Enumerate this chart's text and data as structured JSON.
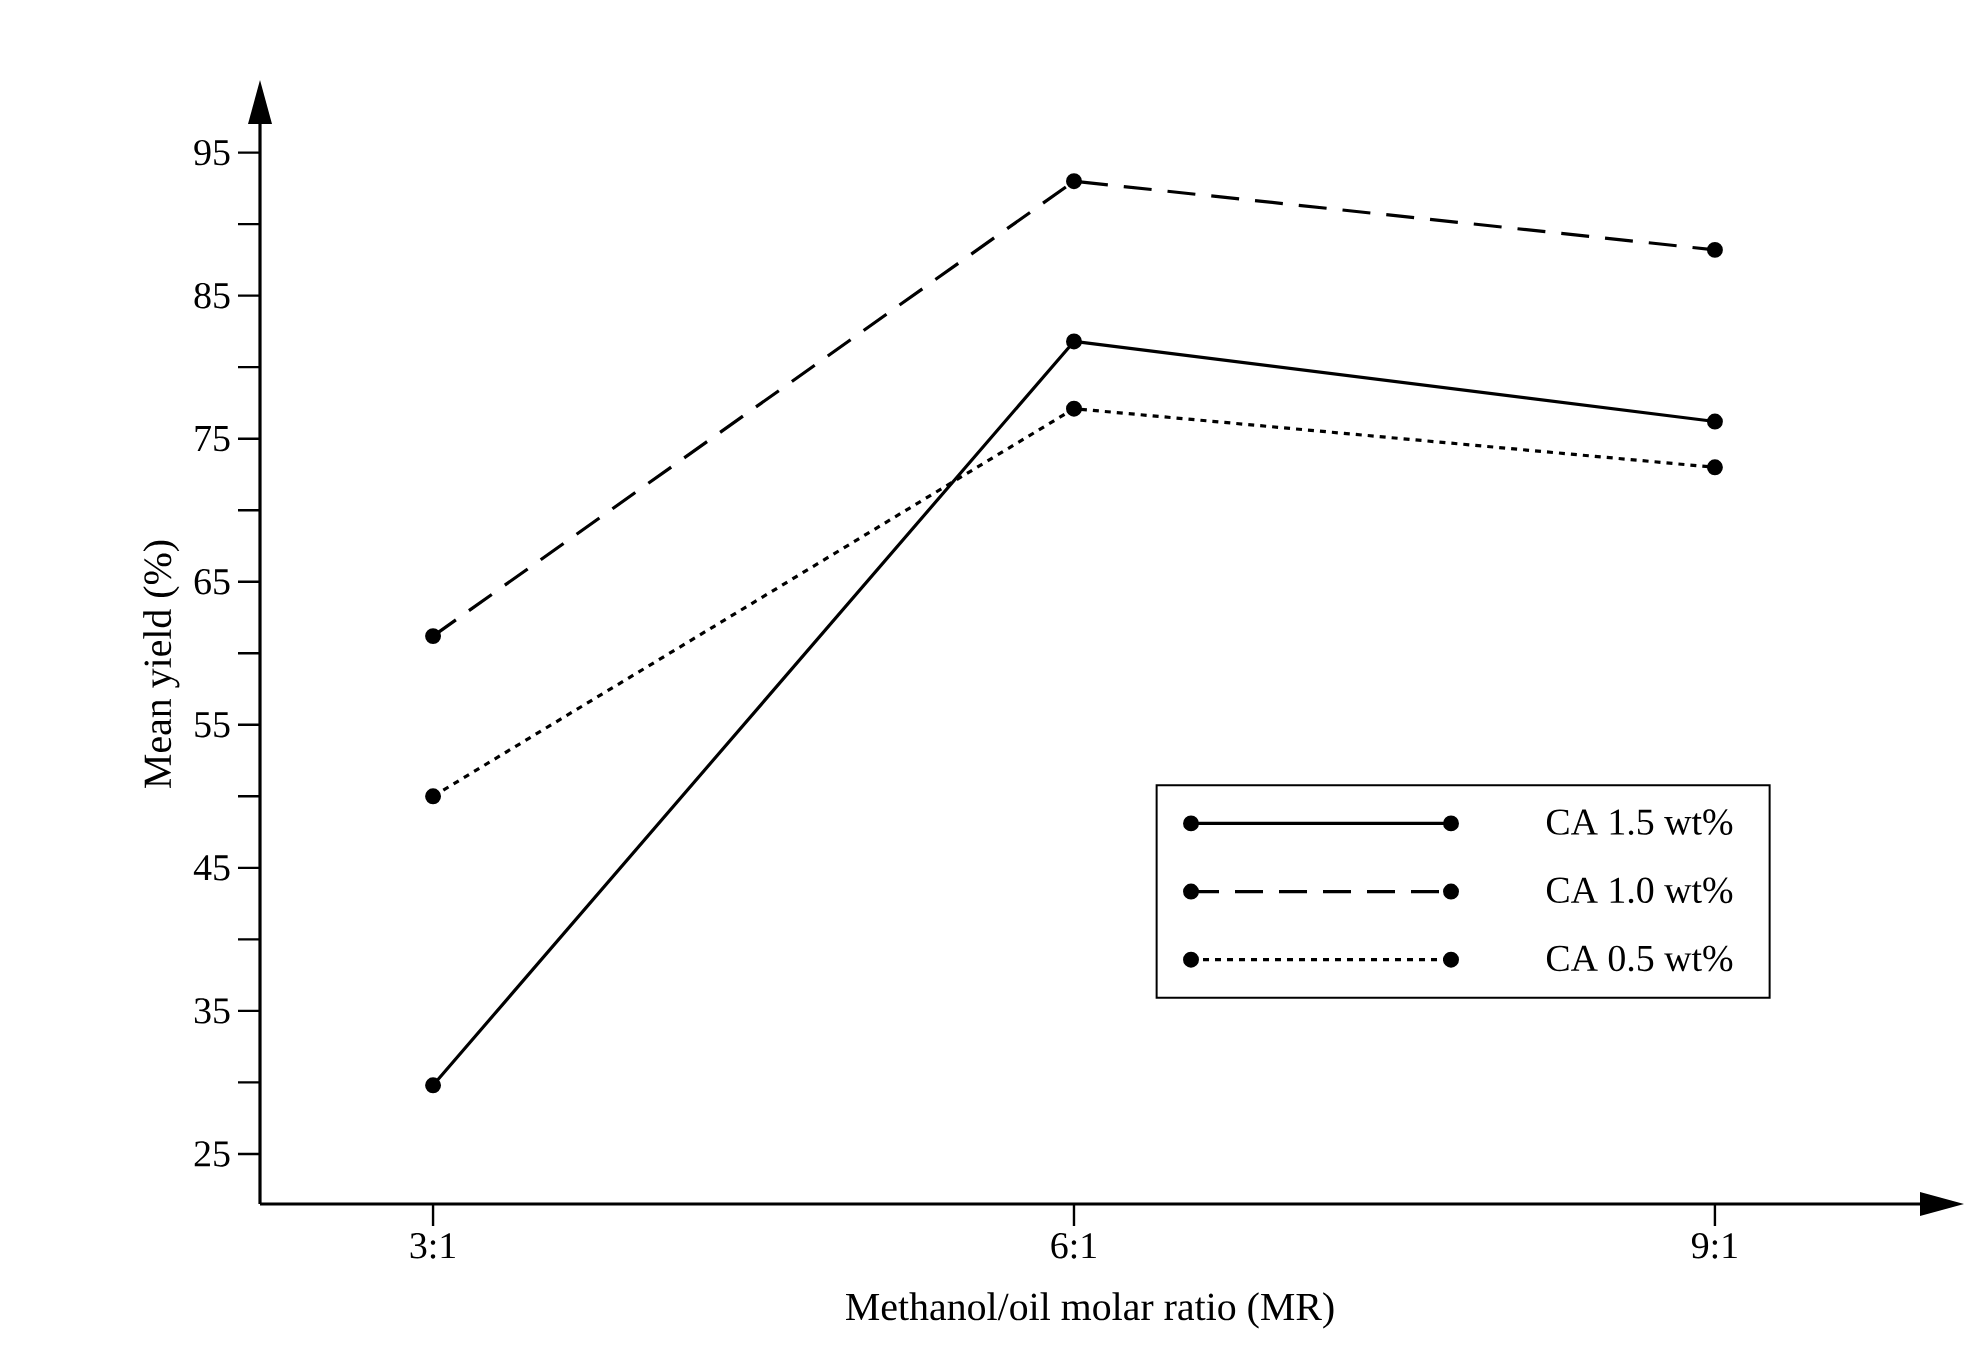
{
  "chart_data": {
    "type": "line",
    "xlabel": "Methanol/oil molar ratio (MR)",
    "ylabel": "Mean yield (%)",
    "categories": [
      "3:1",
      "6:1",
      "9:1"
    ],
    "series": [
      {
        "name": "CA 1.5 wt%",
        "color": "#000000",
        "line_style": "solid",
        "values": [
          29.8,
          81.8,
          76.2
        ]
      },
      {
        "name": "CA 1.0 wt%",
        "color": "#000000",
        "line_style": "dashed",
        "values": [
          61.2,
          93.0,
          88.2
        ]
      },
      {
        "name": "CA 0.5 wt%",
        "color": "#000000",
        "line_style": "dotted",
        "values": [
          50.0,
          77.1,
          73.0
        ]
      }
    ],
    "ylim": [
      21.5,
      97
    ],
    "yticks": [
      25,
      {
        "value": 30,
        "label": null
      },
      35,
      {
        "value": 40,
        "label": null
      },
      45,
      {
        "value": 50,
        "label": null
      },
      55,
      {
        "value": 60,
        "label": null
      },
      65,
      {
        "value": 70,
        "label": null
      },
      75,
      {
        "value": 80,
        "label": null
      },
      85,
      {
        "value": 90,
        "label": null
      },
      95
    ],
    "marker": "circle",
    "legend": "bottom right",
    "grid": false
  }
}
